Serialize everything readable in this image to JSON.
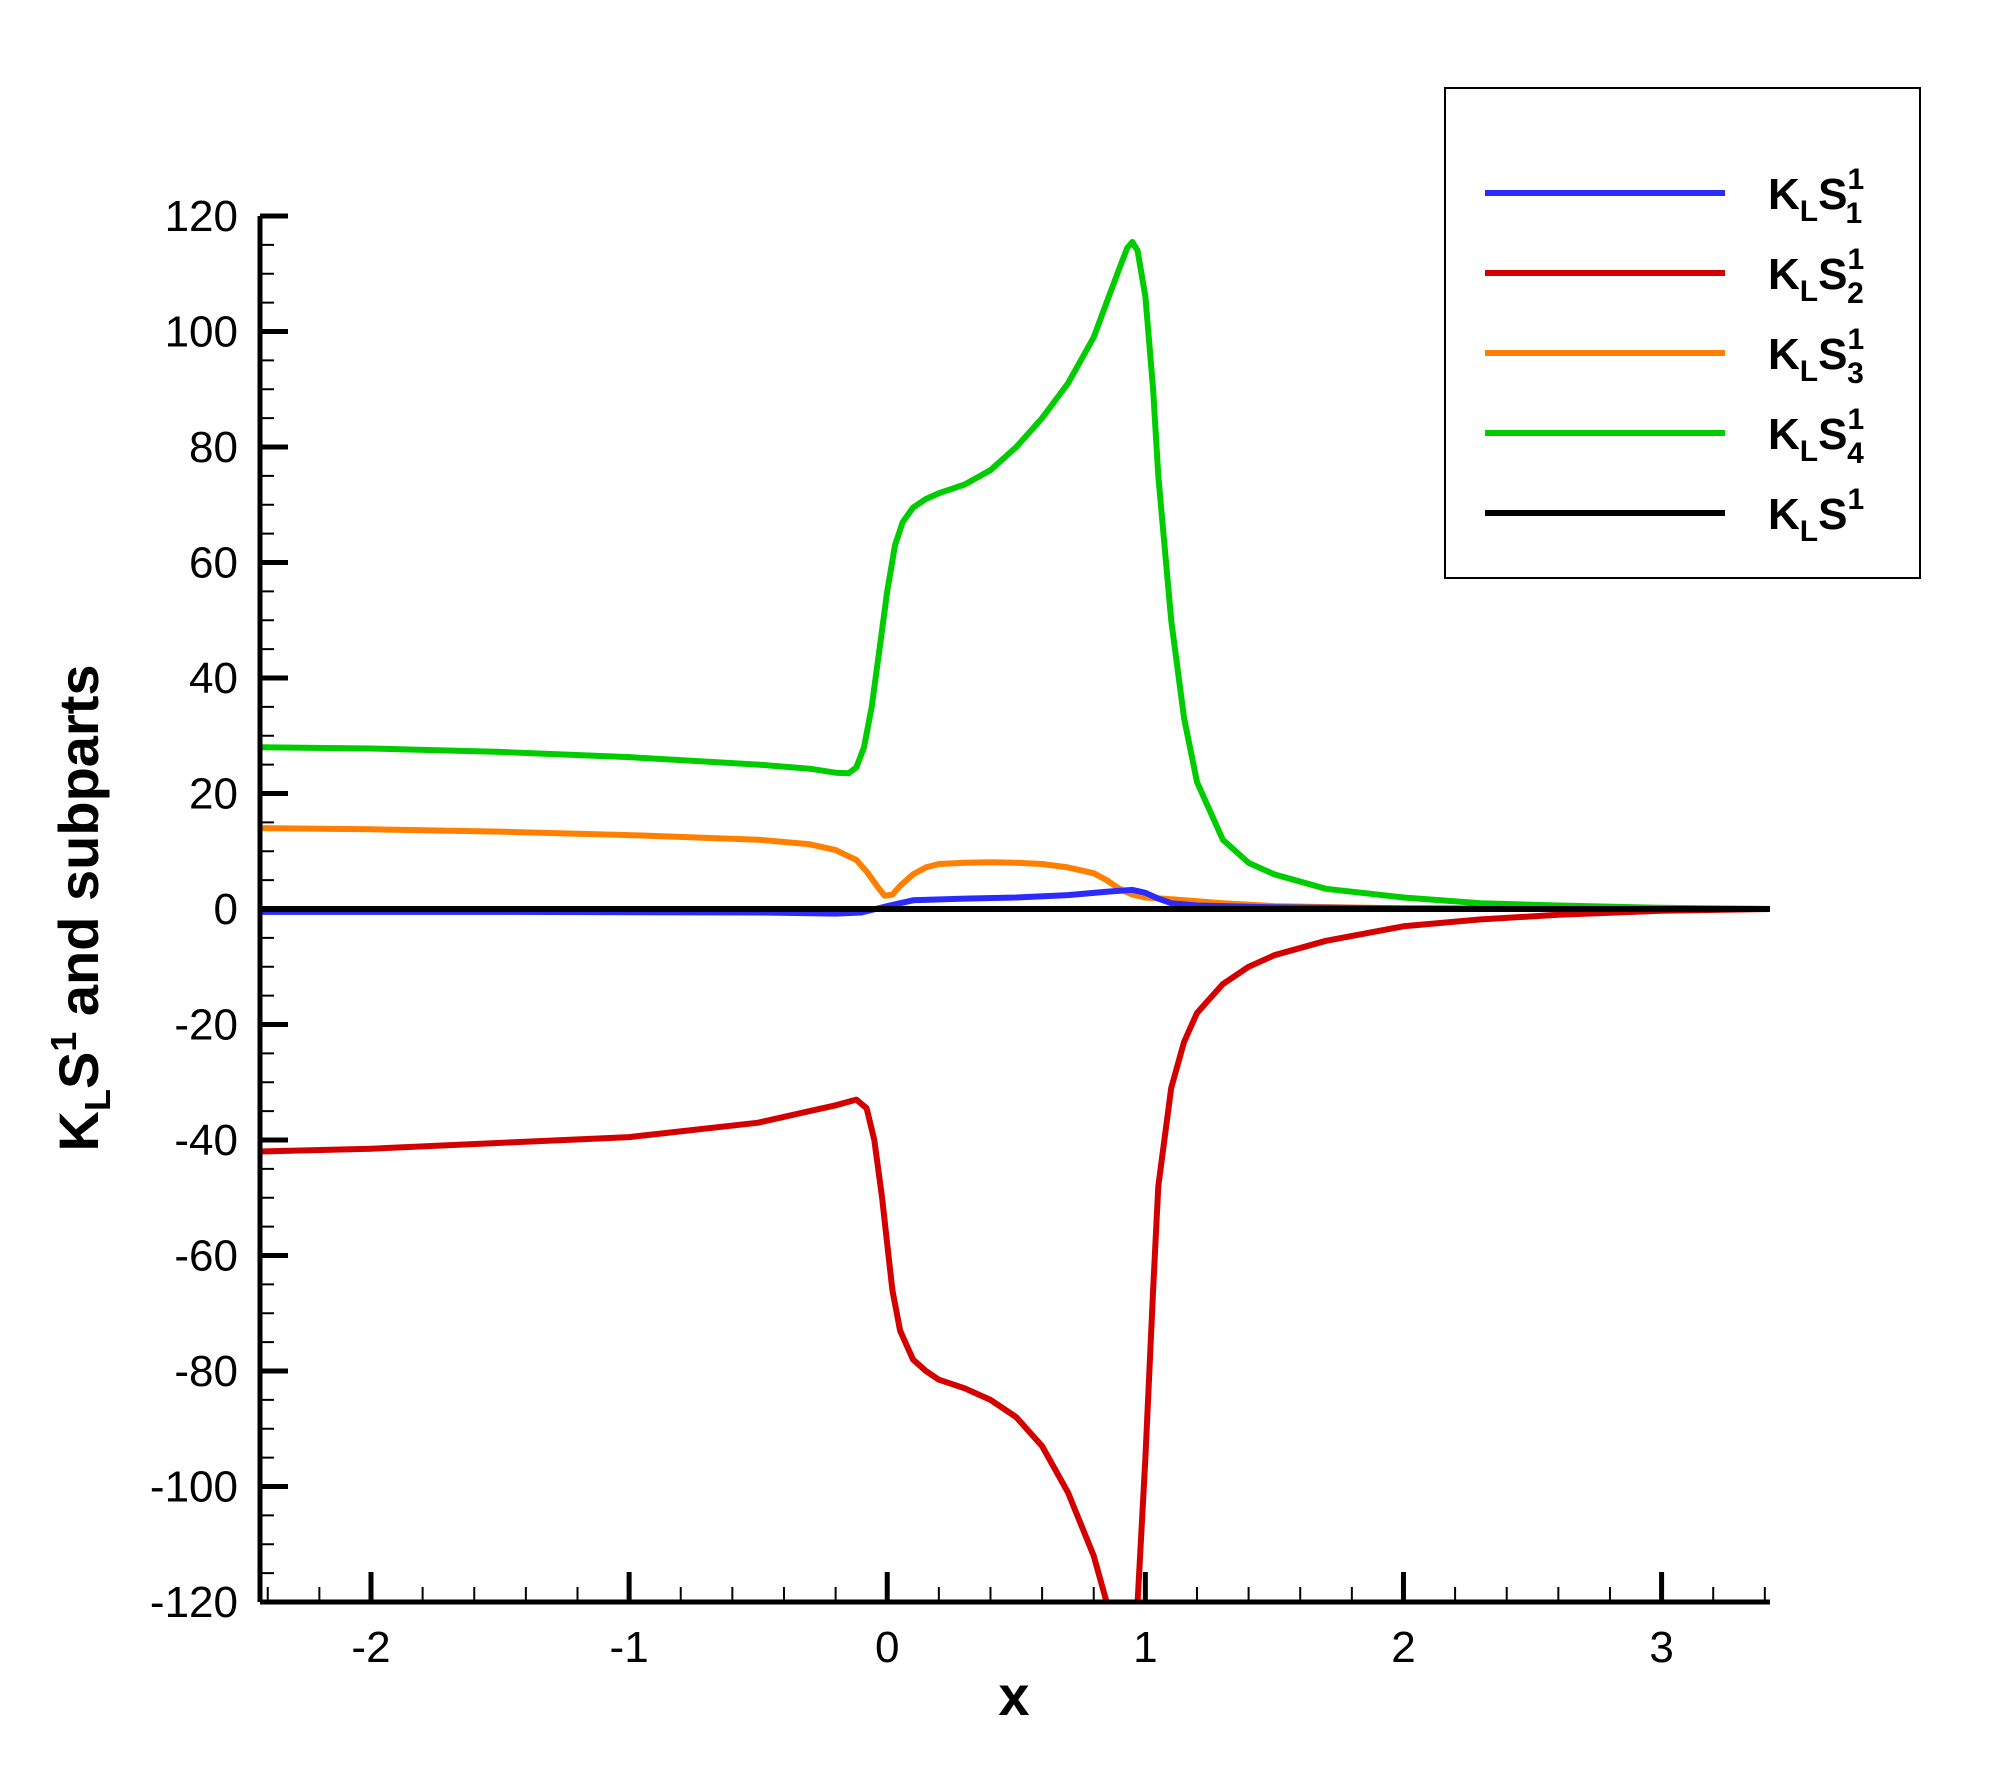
{
  "chart_data": {
    "type": "line",
    "xlabel": "x",
    "ylabel": {
      "main": "K",
      "main_sub": "L",
      "main2": "S",
      "main2_sup": "1",
      "rest": " and subparts"
    },
    "xlim": [
      -2.43,
      3.42
    ],
    "ylim": [
      -120,
      120
    ],
    "x_ticks": [
      -2,
      -1,
      0,
      1,
      2,
      3
    ],
    "x_tick_labels": [
      "-2",
      "-1",
      "0",
      "1",
      "2",
      "3"
    ],
    "y_ticks": [
      -120,
      -100,
      -80,
      -60,
      -40,
      -20,
      0,
      20,
      40,
      60,
      80,
      100,
      120
    ],
    "y_tick_labels": [
      "-120",
      "-100",
      "-80",
      "-60",
      "-40",
      "-20",
      "0",
      "20",
      "40",
      "60",
      "80",
      "100",
      "120"
    ],
    "grid": false,
    "legend_position": "top-right",
    "series": [
      {
        "label": {
          "base": "K",
          "sub": "L",
          "base2": "S",
          "sup": "1",
          "sub2": "1"
        },
        "color": "#2b2bff",
        "x": [
          -2.43,
          -1.5,
          -0.5,
          -0.2,
          -0.1,
          0.0,
          0.1,
          0.3,
          0.5,
          0.7,
          0.85,
          0.95,
          1.0,
          1.05,
          1.1,
          1.2,
          1.5,
          2.0,
          3.42
        ],
        "y": [
          -0.5,
          -0.5,
          -0.6,
          -0.8,
          -0.6,
          0.5,
          1.5,
          1.8,
          2.0,
          2.4,
          3.0,
          3.3,
          2.8,
          1.8,
          1.0,
          0.6,
          0.3,
          0.1,
          0.0
        ]
      },
      {
        "label": {
          "base": "K",
          "sub": "L",
          "base2": "S",
          "sup": "1",
          "sub2": "2"
        },
        "color": "#d40000",
        "x": [
          -2.43,
          -2.0,
          -1.5,
          -1.0,
          -0.5,
          -0.3,
          -0.2,
          -0.12,
          -0.08,
          -0.05,
          -0.02,
          0.0,
          0.02,
          0.05,
          0.1,
          0.15,
          0.2,
          0.3,
          0.4,
          0.5,
          0.6,
          0.7,
          0.8,
          0.85,
          0.9,
          0.92,
          0.95,
          0.97,
          1.0,
          1.03,
          1.05,
          1.1,
          1.15,
          1.2,
          1.3,
          1.4,
          1.5,
          1.7,
          2.0,
          2.3,
          2.6,
          3.0,
          3.42
        ],
        "y": [
          -42,
          -41.5,
          -40.5,
          -39.5,
          -37,
          -35,
          -34,
          -33,
          -34.5,
          -40,
          -50,
          -58,
          -66,
          -73,
          -78,
          -80,
          -81.5,
          -83,
          -85,
          -88,
          -93,
          -101,
          -112,
          -120,
          -128,
          -131,
          -128,
          -120,
          -95,
          -66,
          -48,
          -31,
          -23,
          -18,
          -13,
          -10,
          -8,
          -5.5,
          -3,
          -1.8,
          -1,
          -0.3,
          0
        ]
      },
      {
        "label": {
          "base": "K",
          "sub": "L",
          "base2": "S",
          "sup": "1",
          "sub2": "3"
        },
        "color": "#ff8000",
        "x": [
          -2.43,
          -2.0,
          -1.5,
          -1.0,
          -0.5,
          -0.3,
          -0.2,
          -0.12,
          -0.08,
          -0.04,
          -0.01,
          0.02,
          0.05,
          0.1,
          0.15,
          0.2,
          0.3,
          0.4,
          0.5,
          0.6,
          0.7,
          0.8,
          0.85,
          0.9,
          0.95,
          1.0,
          1.1,
          1.3,
          1.5,
          2.0,
          3.42
        ],
        "y": [
          14,
          13.8,
          13.4,
          12.8,
          12.0,
          11.2,
          10.2,
          8.5,
          6.5,
          4.0,
          2.3,
          2.5,
          4.0,
          6.0,
          7.2,
          7.8,
          8.0,
          8.1,
          8.0,
          7.8,
          7.2,
          6.2,
          5.0,
          3.5,
          2.5,
          2.0,
          1.7,
          1.0,
          0.5,
          0.1,
          0.0
        ]
      },
      {
        "label": {
          "base": "K",
          "sub": "L",
          "base2": "S",
          "sup": "1",
          "sub2": "4"
        },
        "color": "#00cc00",
        "x": [
          -2.43,
          -2.0,
          -1.5,
          -1.0,
          -0.5,
          -0.3,
          -0.2,
          -0.15,
          -0.12,
          -0.09,
          -0.06,
          -0.03,
          0.0,
          0.03,
          0.06,
          0.1,
          0.15,
          0.2,
          0.3,
          0.4,
          0.5,
          0.6,
          0.7,
          0.8,
          0.85,
          0.9,
          0.93,
          0.95,
          0.97,
          1.0,
          1.03,
          1.05,
          1.1,
          1.15,
          1.2,
          1.3,
          1.4,
          1.5,
          1.7,
          2.0,
          2.3,
          2.6,
          3.0,
          3.42
        ],
        "y": [
          28,
          27.8,
          27.2,
          26.3,
          25.0,
          24.3,
          23.6,
          23.5,
          24.5,
          28,
          35,
          45,
          55,
          63,
          67,
          69.5,
          71,
          72,
          73.5,
          76,
          80,
          85,
          91,
          99,
          105,
          111,
          114.5,
          115.5,
          114,
          106,
          90,
          75,
          50,
          33,
          22,
          12,
          8,
          6,
          3.5,
          2,
          1,
          0.6,
          0.2,
          0
        ]
      },
      {
        "label": {
          "base": "K",
          "sub": "L",
          "base2": "S",
          "sup": "1",
          "sub2": ""
        },
        "color": "#000000",
        "x": [
          -2.43,
          3.42
        ],
        "y": [
          0,
          0
        ]
      }
    ]
  }
}
